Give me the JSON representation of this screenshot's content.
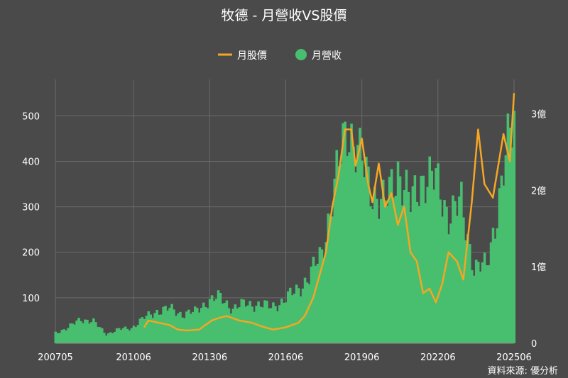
{
  "chart_data": {
    "type": "bar+line",
    "title": "牧德 - 月營收VS股價",
    "source": "資料來源: 優分析",
    "legend": [
      {
        "name": "月股價",
        "kind": "line",
        "color": "#f5a623"
      },
      {
        "name": "月營收",
        "kind": "bar",
        "color": "#48bf6f"
      }
    ],
    "legend_placement": "top-center",
    "x_ticks": [
      "200705",
      "201006",
      "201306",
      "201606",
      "201906",
      "202206",
      "202506"
    ],
    "x_range": [
      "2007-05",
      "2025-06"
    ],
    "left_axis": {
      "ticks": [
        100,
        200,
        300,
        400,
        500
      ],
      "range": [
        0,
        580
      ]
    },
    "right_axis": {
      "ticks": [
        "0",
        "1億",
        "2億",
        "3億"
      ],
      "tick_values": [
        0,
        1,
        2,
        3
      ],
      "range": [
        0,
        3.45
      ],
      "unit": "億"
    },
    "grid": true,
    "colors": {
      "background": "#4a4a4a",
      "bar": "#48bf6f",
      "line": "#f5a623",
      "grid": "#6a6a6a"
    },
    "revenue_series": {
      "name": "月營收",
      "unit": "億",
      "points": [
        [
          "2007-05",
          0.14
        ],
        [
          "2007-11",
          0.2
        ],
        [
          "2008-05",
          0.32
        ],
        [
          "2008-11",
          0.28
        ],
        [
          "2009-05",
          0.12
        ],
        [
          "2009-11",
          0.18
        ],
        [
          "2010-05",
          0.2
        ],
        [
          "2010-11",
          0.33
        ],
        [
          "2011-05",
          0.42
        ],
        [
          "2011-11",
          0.45
        ],
        [
          "2012-05",
          0.38
        ],
        [
          "2012-11",
          0.41
        ],
        [
          "2013-05",
          0.55
        ],
        [
          "2013-11",
          0.6
        ],
        [
          "2014-05",
          0.45
        ],
        [
          "2014-11",
          0.52
        ],
        [
          "2015-05",
          0.5
        ],
        [
          "2015-11",
          0.48
        ],
        [
          "2016-05",
          0.55
        ],
        [
          "2016-11",
          0.7
        ],
        [
          "2017-05",
          0.85
        ],
        [
          "2017-11",
          1.2
        ],
        [
          "2018-05",
          2.0
        ],
        [
          "2018-11",
          2.9
        ],
        [
          "2019-05",
          2.4
        ],
        [
          "2019-11",
          2.0
        ],
        [
          "2020-05",
          1.8
        ],
        [
          "2020-11",
          2.3
        ],
        [
          "2021-05",
          1.8
        ],
        [
          "2021-11",
          2.2
        ],
        [
          "2022-05",
          2.1
        ],
        [
          "2022-11",
          1.7
        ],
        [
          "2023-05",
          1.8
        ],
        [
          "2023-11",
          1.0
        ],
        [
          "2024-05",
          1.0
        ],
        [
          "2024-11",
          1.9
        ],
        [
          "2025-06",
          3.0
        ]
      ]
    },
    "price_series": {
      "name": "月股價",
      "start": "2010-11",
      "points": [
        [
          "2010-11",
          35
        ],
        [
          "2011-01",
          50
        ],
        [
          "2011-06",
          45
        ],
        [
          "2011-11",
          40
        ],
        [
          "2012-03",
          30
        ],
        [
          "2012-07",
          28
        ],
        [
          "2013-01",
          30
        ],
        [
          "2013-07",
          50
        ],
        [
          "2013-10",
          55
        ],
        [
          "2014-02",
          60
        ],
        [
          "2014-08",
          50
        ],
        [
          "2015-02",
          45
        ],
        [
          "2015-06",
          38
        ],
        [
          "2015-12",
          30
        ],
        [
          "2016-06",
          35
        ],
        [
          "2016-12",
          45
        ],
        [
          "2017-03",
          60
        ],
        [
          "2017-07",
          100
        ],
        [
          "2017-10",
          150
        ],
        [
          "2018-01",
          200
        ],
        [
          "2018-04",
          300
        ],
        [
          "2018-07",
          370
        ],
        [
          "2018-10",
          470
        ],
        [
          "2019-01",
          470
        ],
        [
          "2019-03",
          390
        ],
        [
          "2019-06",
          450
        ],
        [
          "2019-09",
          350
        ],
        [
          "2019-11",
          310
        ],
        [
          "2020-02",
          395
        ],
        [
          "2020-05",
          300
        ],
        [
          "2020-08",
          330
        ],
        [
          "2020-11",
          260
        ],
        [
          "2021-02",
          300
        ],
        [
          "2021-05",
          200
        ],
        [
          "2021-08",
          180
        ],
        [
          "2021-11",
          110
        ],
        [
          "2022-02",
          120
        ],
        [
          "2022-05",
          90
        ],
        [
          "2022-08",
          130
        ],
        [
          "2022-11",
          200
        ],
        [
          "2023-03",
          180
        ],
        [
          "2023-06",
          140
        ],
        [
          "2023-10",
          310
        ],
        [
          "2024-01",
          470
        ],
        [
          "2024-04",
          350
        ],
        [
          "2024-08",
          320
        ],
        [
          "2025-01",
          460
        ],
        [
          "2025-04",
          400
        ],
        [
          "2025-06",
          550
        ]
      ]
    }
  }
}
